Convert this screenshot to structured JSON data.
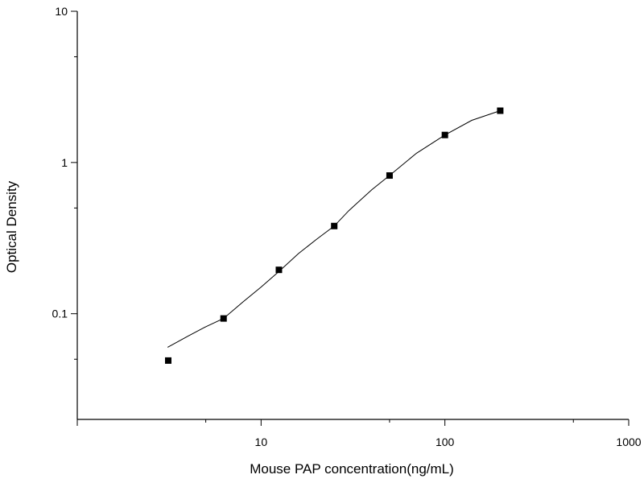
{
  "chart_data": {
    "type": "scatter",
    "title": "",
    "xlabel": "Mouse PAP concentration(ng/mL)",
    "ylabel": "Optical Density",
    "x_scale": "log",
    "y_scale": "log",
    "xlim": [
      1,
      1000
    ],
    "ylim": [
      0.02,
      10
    ],
    "x_tick_labels": [
      {
        "value": 10,
        "label": "10"
      },
      {
        "value": 100,
        "label": "100"
      },
      {
        "value": 1000,
        "label": "1000"
      }
    ],
    "y_tick_labels": [
      {
        "value": 0.1,
        "label": "0.1"
      },
      {
        "value": 1,
        "label": "1"
      },
      {
        "value": 10,
        "label": "10"
      }
    ],
    "grid": false,
    "legend": "none",
    "marker": "square",
    "marker_color": "#000000",
    "curve_color": "#000000",
    "points": {
      "x": [
        3.125,
        6.25,
        12.5,
        25,
        50,
        100,
        200
      ],
      "y": [
        0.049,
        0.093,
        0.195,
        0.38,
        0.82,
        1.52,
        2.2
      ]
    },
    "fit_curve": {
      "x": [
        3.1,
        4,
        5,
        6.25,
        8,
        10,
        12.5,
        16,
        20,
        25,
        30,
        40,
        50,
        70,
        100,
        140,
        200
      ],
      "y": [
        0.06,
        0.071,
        0.082,
        0.093,
        0.12,
        0.15,
        0.19,
        0.25,
        0.31,
        0.38,
        0.48,
        0.66,
        0.82,
        1.15,
        1.52,
        1.9,
        2.2
      ]
    }
  }
}
